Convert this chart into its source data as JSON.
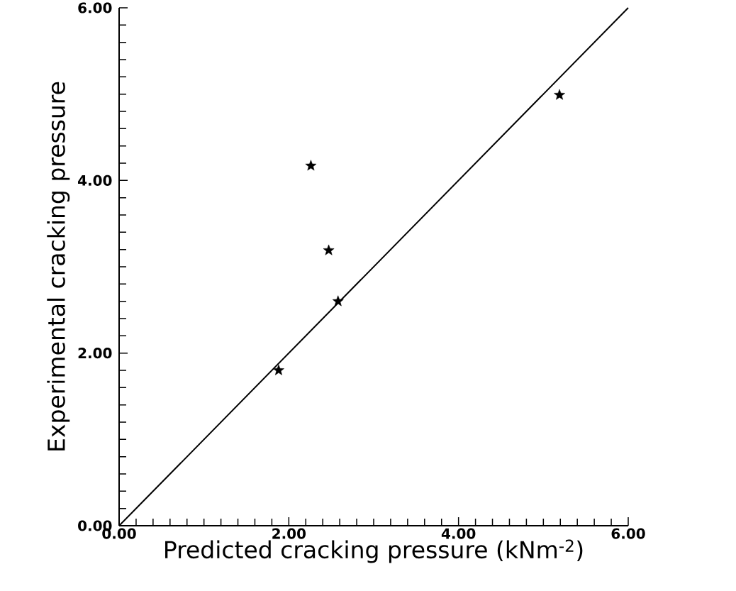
{
  "chart_data": {
    "type": "scatter",
    "xlabel": "Predicted cracking pressure (kNm$^{-2}$)",
    "ylabel": "Experimental cracking pressure",
    "series": [
      {
        "type": "scatter",
        "color": "#000000",
        "marker": "star",
        "x": [
          1.88,
          2.26,
          2.47,
          2.58,
          5.19
        ],
        "values": [
          1.8,
          4.17,
          3.19,
          2.6,
          4.99
        ]
      },
      {
        "type": "line",
        "color": "#000000",
        "marker": "none",
        "line_style": "solid",
        "x": [
          0,
          6
        ],
        "values": [
          0,
          6
        ]
      }
    ],
    "xlim": [
      0,
      6
    ],
    "ylim": [
      0,
      6
    ],
    "xticks": [
      {
        "value": 0,
        "label": "0.00"
      },
      {
        "value": 2,
        "label": "2.00"
      },
      {
        "value": 4,
        "label": "4.00"
      },
      {
        "value": 6,
        "label": "6.00"
      }
    ],
    "yticks": [
      {
        "value": 0,
        "label": "0.00"
      },
      {
        "value": 2,
        "label": "2.00"
      },
      {
        "value": 4,
        "label": "4.00"
      },
      {
        "value": 6,
        "label": "6.00"
      }
    ]
  }
}
